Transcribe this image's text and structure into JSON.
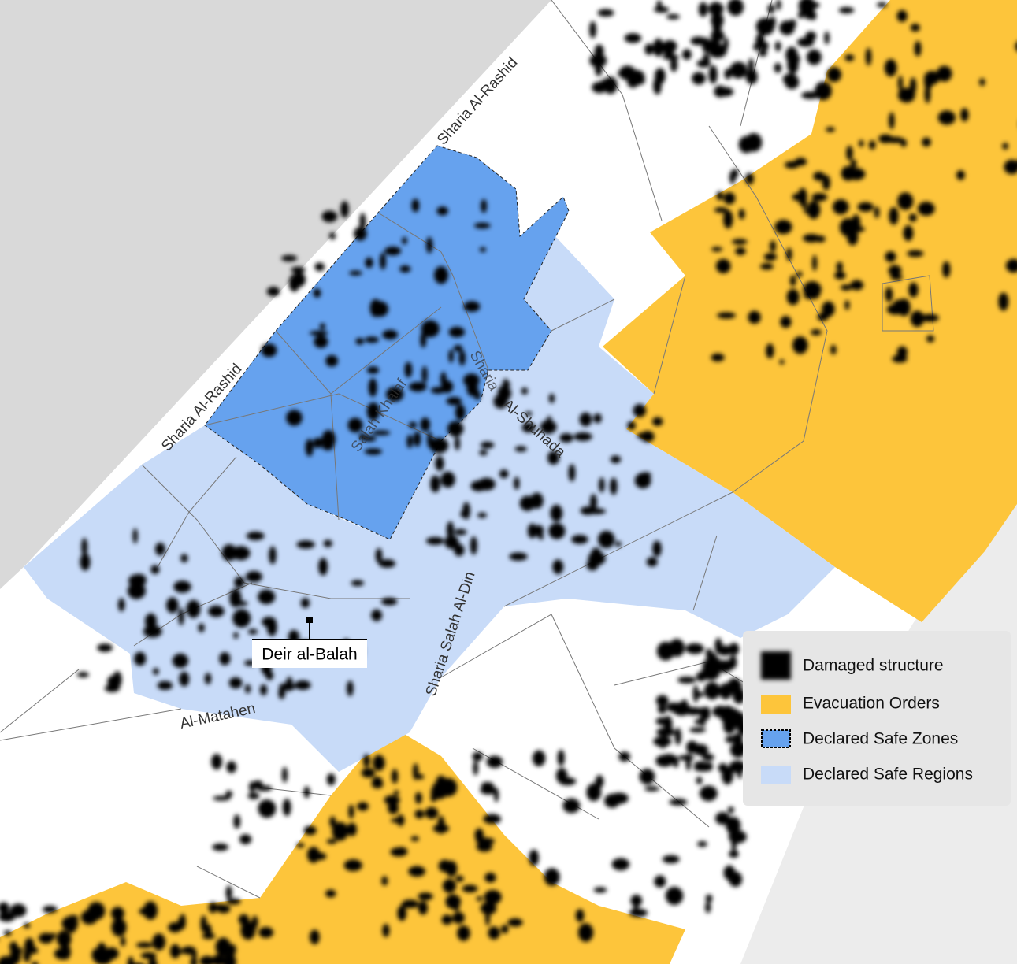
{
  "map": {
    "place_label": "Deir al-Balah",
    "street_labels": [
      "Sharia Al-Rashid",
      "Sharia Al-Rashid",
      "Salah Khalaf",
      "Sharia",
      "Al-Shuhada",
      "Sharia Salah Al-Din",
      "Al-Matahen"
    ]
  },
  "legend": {
    "items": [
      {
        "label": "Damaged structure"
      },
      {
        "label": "Evacuation Orders"
      },
      {
        "label": "Declared Safe Zones"
      },
      {
        "label": "Declared Safe Regions"
      }
    ]
  }
}
